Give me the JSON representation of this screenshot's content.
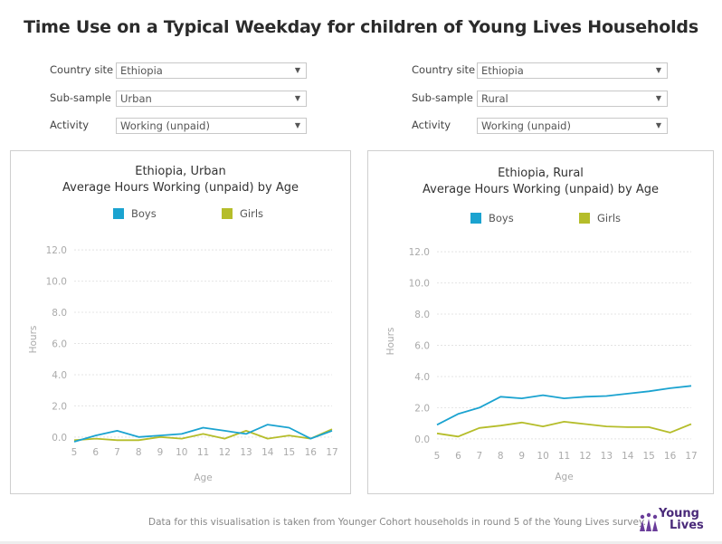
{
  "page_title": "Time Use on a Typical Weekday for children of Young Lives Households",
  "filters": [
    {
      "country_label": "Country site",
      "country_value": "Ethiopia",
      "subsample_label": "Sub-sample",
      "subsample_value": "Urban",
      "activity_label": "Activity",
      "activity_value": "Working (unpaid)"
    },
    {
      "country_label": "Country site",
      "country_value": "Ethiopia",
      "subsample_label": "Sub-sample",
      "subsample_value": "Rural",
      "activity_label": "Activity",
      "activity_value": "Working (unpaid)"
    }
  ],
  "colors": {
    "boys": "#1ba3d0",
    "girls": "#b5bd2a",
    "grid": "#e4e4e4"
  },
  "chart_data": [
    {
      "type": "line",
      "title": "Ethiopia, Urban",
      "subtitle": "Average Hours Working (unpaid) by Age",
      "xlabel": "Age",
      "ylabel": "Hours",
      "x": [
        5,
        6,
        7,
        8,
        9,
        10,
        11,
        12,
        13,
        14,
        15,
        16,
        17
      ],
      "x_tick_labels": [
        "5",
        "6",
        "7",
        "8",
        "9",
        "10",
        "11",
        "12",
        "13",
        "14",
        "15",
        "16",
        "17"
      ],
      "y_ticks": [
        0.0,
        2.0,
        4.0,
        6.0,
        8.0,
        10.0,
        12.0
      ],
      "y_tick_labels": [
        "0.0",
        "2.0",
        "4.0",
        "6.0",
        "8.0",
        "10.0",
        "12.0"
      ],
      "ylim": [
        -0.3,
        12.3
      ],
      "legend_position": "top",
      "grid": true,
      "series": [
        {
          "name": "Boys",
          "values": [
            -0.3,
            0.1,
            0.4,
            0.0,
            0.1,
            0.2,
            0.6,
            0.4,
            0.2,
            0.8,
            0.6,
            -0.1,
            0.4
          ]
        },
        {
          "name": "Girls",
          "values": [
            -0.2,
            -0.1,
            -0.2,
            -0.2,
            0.0,
            -0.1,
            0.2,
            -0.1,
            0.4,
            -0.1,
            0.1,
            -0.1,
            0.5
          ]
        }
      ]
    },
    {
      "type": "line",
      "title": "Ethiopia, Rural",
      "subtitle": "Average Hours Working (unpaid) by Age",
      "xlabel": "Age",
      "ylabel": "Hours",
      "x": [
        5,
        6,
        7,
        8,
        9,
        10,
        11,
        12,
        13,
        14,
        15,
        16,
        17
      ],
      "x_tick_labels": [
        "5",
        "6",
        "7",
        "8",
        "9",
        "10",
        "11",
        "12",
        "13",
        "14",
        "15",
        "16",
        "17"
      ],
      "y_ticks": [
        0.0,
        2.0,
        4.0,
        6.0,
        8.0,
        10.0,
        12.0
      ],
      "y_tick_labels": [
        "0.0",
        "2.0",
        "4.0",
        "6.0",
        "8.0",
        "10.0",
        "12.0"
      ],
      "ylim": [
        -0.3,
        12.3
      ],
      "legend_position": "top",
      "grid": true,
      "series": [
        {
          "name": "Boys",
          "values": [
            0.9,
            1.6,
            2.0,
            2.7,
            2.6,
            2.8,
            2.6,
            2.7,
            2.75,
            2.9,
            3.05,
            3.25,
            3.4
          ]
        },
        {
          "name": "Girls",
          "values": [
            0.35,
            0.15,
            0.7,
            0.85,
            1.05,
            0.8,
            1.1,
            0.95,
            0.8,
            0.75,
            0.75,
            0.4,
            0.95
          ]
        }
      ]
    }
  ],
  "footer": "Data for this visualisation is taken from Younger Cohort households in round 5 of the Young Lives survey.",
  "logo_text_1": "Young",
  "logo_text_2": "Lives"
}
